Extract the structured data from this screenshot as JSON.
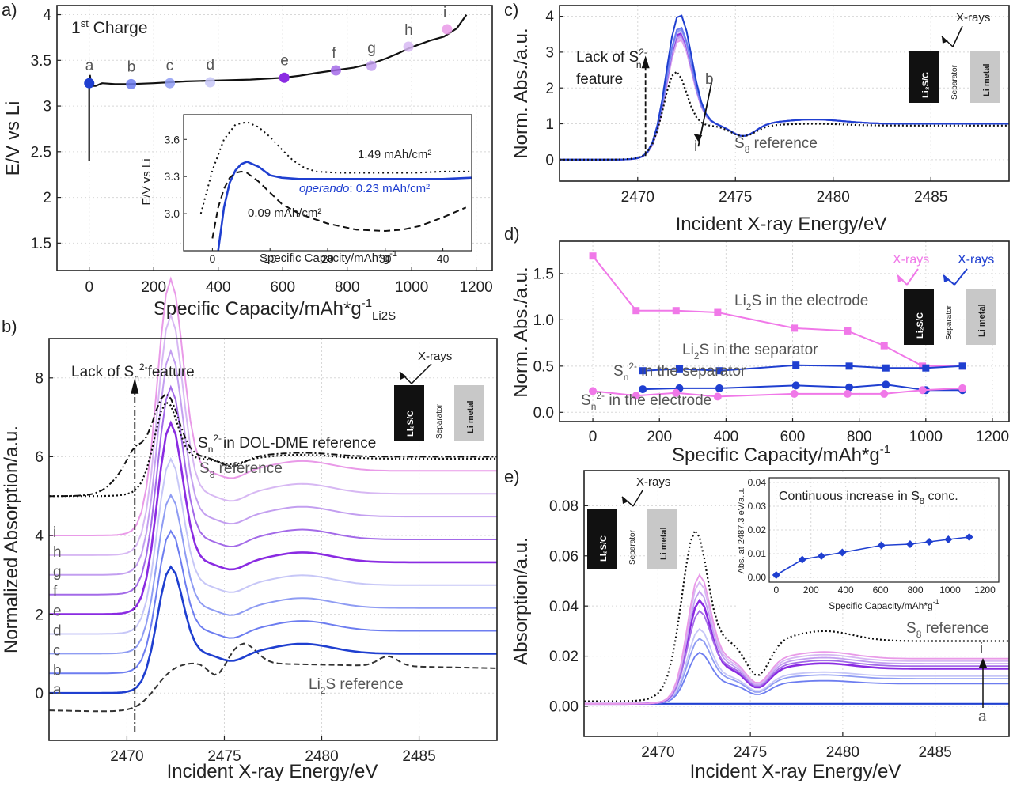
{
  "colors": {
    "blue": "#1f3fd0",
    "violet": "#8a2be2",
    "pink": "#f078e8",
    "black": "#111111",
    "gray": "#555555",
    "cell_black": "#111111",
    "cell_gray": "#c8c8c8",
    "spectra": [
      "#1f3fd0",
      "#6d7df0",
      "#8f9cf3",
      "#c7c7f7",
      "#8a2be2",
      "#a36ae8",
      "#c39ff0",
      "#d7b8f3",
      "#e99ae8"
    ]
  },
  "panels": {
    "a": "a)",
    "b": "b)",
    "c": "c)",
    "d": "d)",
    "e": "e)"
  },
  "chart_data": [
    {
      "id": "a",
      "type": "line",
      "title": "1st Charge",
      "title_sup": "st",
      "title_num": "1",
      "title_rest": " Charge",
      "xlabel": "Specific Capacity/mAh*g",
      "xlabel_sup": "-1",
      "xlabel_sub": "Li2S",
      "ylabel": "E/V vs Li",
      "xlim": [
        -100,
        1250
      ],
      "ylim": [
        1.2,
        4.1
      ],
      "xticks": [
        0,
        200,
        400,
        600,
        800,
        1000,
        1200
      ],
      "yticks": [
        1.5,
        2.0,
        2.5,
        3.0,
        3.5,
        4.0
      ],
      "curve": {
        "x": [
          0,
          0,
          2,
          5,
          10,
          20,
          40,
          80,
          130,
          200,
          300,
          400,
          500,
          600,
          650,
          700,
          760,
          820,
          880,
          920,
          960,
          990,
          1020,
          1060,
          1100,
          1140,
          1170
        ],
        "y": [
          2.4,
          3.18,
          3.34,
          3.26,
          3.22,
          3.22,
          3.25,
          3.24,
          3.24,
          3.25,
          3.27,
          3.28,
          3.29,
          3.31,
          3.33,
          3.36,
          3.39,
          3.42,
          3.47,
          3.52,
          3.58,
          3.63,
          3.67,
          3.72,
          3.76,
          3.85,
          4.0
        ]
      },
      "points": [
        {
          "label": "a",
          "x": 0,
          "y": 3.25
        },
        {
          "label": "b",
          "x": 130,
          "y": 3.24
        },
        {
          "label": "c",
          "x": 250,
          "y": 3.25
        },
        {
          "label": "d",
          "x": 375,
          "y": 3.26
        },
        {
          "label": "e",
          "x": 605,
          "y": 3.31
        },
        {
          "label": "f",
          "x": 765,
          "y": 3.39
        },
        {
          "label": "g",
          "x": 875,
          "y": 3.44
        },
        {
          "label": "h",
          "x": 990,
          "y": 3.65
        },
        {
          "label": "i",
          "x": 1110,
          "y": 3.84
        }
      ]
    },
    {
      "id": "a_inset",
      "type": "line",
      "xlabel": "Specific Capacity/mAh*g",
      "xlabel_sup": "-1",
      "ylabel": "E/V vs Li",
      "xlim": [
        -5,
        45
      ],
      "ylim": [
        2.7,
        3.8
      ],
      "xticks": [
        0,
        10,
        20,
        30,
        40
      ],
      "yticks": [
        3.0,
        3.3,
        3.6
      ],
      "series": [
        {
          "name": "1.49 mAh/cm²",
          "label": "1.49 mAh/cm²",
          "style": "dotted",
          "x": [
            -2,
            0,
            2,
            4,
            6,
            8,
            10,
            12,
            14,
            16,
            18,
            22,
            26,
            30,
            35,
            40,
            45
          ],
          "y": [
            3.0,
            3.35,
            3.6,
            3.72,
            3.74,
            3.7,
            3.62,
            3.52,
            3.43,
            3.37,
            3.34,
            3.33,
            3.33,
            3.33,
            3.33,
            3.34,
            3.34
          ]
        },
        {
          "name": "operando: 0.23 mAh/cm²",
          "label_italic": "operando",
          "label_rest": ": 0.23 mAh/cm²",
          "style": "solid",
          "x": [
            1,
            2,
            3,
            4,
            5,
            6,
            8,
            10,
            12,
            15,
            20,
            30,
            40,
            45
          ],
          "y": [
            2.7,
            3.05,
            3.25,
            3.35,
            3.4,
            3.42,
            3.38,
            3.31,
            3.29,
            3.28,
            3.28,
            3.28,
            3.28,
            3.29
          ]
        },
        {
          "name": "0.09 mAh/cm²",
          "label": "0.09 mAh/cm²",
          "style": "dashed",
          "x": [
            0,
            1,
            2,
            3,
            4,
            5,
            6,
            8,
            10,
            12,
            15,
            20,
            25,
            30,
            33,
            36,
            40,
            44
          ],
          "y": [
            2.8,
            3.05,
            3.2,
            3.29,
            3.33,
            3.34,
            3.33,
            3.26,
            3.17,
            3.08,
            3.0,
            2.92,
            2.87,
            2.86,
            2.87,
            2.9,
            2.97,
            3.05
          ]
        }
      ]
    },
    {
      "id": "b",
      "type": "line",
      "xlabel": "Incident X-ray Energy/eV",
      "ylabel": "Normalized Absorption/a.u.",
      "xlim": [
        2466,
        2489
      ],
      "ylim": [
        -1.2,
        9
      ],
      "xticks": [
        2470,
        2475,
        2480,
        2485
      ],
      "yticks": [
        0,
        2,
        4,
        6,
        8
      ],
      "series_labels": [
        "a",
        "b",
        "c",
        "d",
        "e",
        "f",
        "g",
        "h",
        "i"
      ],
      "offsets": [
        0,
        0.5,
        1.0,
        1.5,
        2.0,
        2.5,
        3.0,
        3.5,
        4.0
      ],
      "annotations": {
        "lack": "Lack of S",
        "lack_sub": "n",
        "lack_sup": "2-",
        "lack_rest": "feature",
        "dol": "in DOL-DME reference",
        "dol_s": "S",
        "dol_sub": "n",
        "dol_sup": "2-",
        "s8": "S",
        "s8_sub": "8",
        "s8_rest": " reference",
        "li2s": "Li",
        "li2s_sub": "2",
        "li2s_rest": "S reference"
      },
      "dashed_line_x": 2470.4
    },
    {
      "id": "c",
      "type": "line",
      "xlabel": "Incident X-ray Energy/eV",
      "ylabel": "Norm. Abs./a.u.",
      "xlim": [
        2466,
        2489
      ],
      "ylim": [
        -0.6,
        4.3
      ],
      "xticks": [
        2470,
        2475,
        2480,
        2485
      ],
      "yticks": [
        0,
        1,
        2,
        3,
        4
      ],
      "annotations": {
        "lack1": "Lack of S",
        "lack_sub": "n",
        "lack_sup": "2-",
        "lack2": "feature",
        "b": "b",
        "i": "i",
        "s8": "S",
        "s8_sub": "8",
        "s8_rest": " reference"
      }
    },
    {
      "id": "d",
      "type": "line",
      "xlabel": "Specific Capacity/mAh*g",
      "xlabel_sup": "-1",
      "ylabel": "Norm. Abs./a.u.",
      "xlim": [
        -100,
        1250
      ],
      "ylim": [
        -0.1,
        1.85
      ],
      "xticks": [
        0,
        200,
        400,
        600,
        800,
        1000,
        1200
      ],
      "yticks": [
        0.0,
        0.5,
        1.0,
        1.5
      ],
      "series": [
        {
          "name": "Li2S in the electrode",
          "color": "pink",
          "marker": "square",
          "x": [
            0,
            130,
            250,
            375,
            605,
            765,
            875,
            990,
            1110
          ],
          "y": [
            1.69,
            1.1,
            1.1,
            1.08,
            0.91,
            0.88,
            0.72,
            0.5,
            0.5
          ]
        },
        {
          "name": "Li2S in the separator",
          "color": "blue",
          "marker": "square",
          "x": [
            150,
            260,
            380,
            610,
            770,
            880,
            1000,
            1110
          ],
          "y": [
            0.45,
            0.47,
            0.45,
            0.51,
            0.5,
            0.48,
            0.48,
            0.5
          ]
        },
        {
          "name": "Sn2- in the separator",
          "color": "blue",
          "marker": "circle",
          "x": [
            150,
            260,
            380,
            610,
            770,
            880,
            1000,
            1110
          ],
          "y": [
            0.25,
            0.26,
            0.26,
            0.29,
            0.27,
            0.3,
            0.24,
            0.24
          ]
        },
        {
          "name": "Sn2- in the electrode",
          "color": "pink",
          "marker": "circle",
          "x": [
            0,
            130,
            250,
            375,
            605,
            765,
            875,
            990,
            1110
          ],
          "y": [
            0.23,
            0.18,
            0.21,
            0.17,
            0.2,
            0.2,
            0.2,
            0.24,
            0.26
          ]
        }
      ],
      "labels": {
        "li2s_el": "Li",
        "li2s_el_sub": "2",
        "li2s_el_rest": "S in the electrode",
        "li2s_sep": "Li",
        "li2s_sep_sub": "2",
        "li2s_sep_rest": "S in the separator",
        "sn_sep": "S",
        "sn_sep_sub": "n",
        "sn_sep_sup": "2-",
        "sn_sep_rest": " in the separator",
        "sn_el": "S",
        "sn_el_sub": "n",
        "sn_el_sup": "2-",
        "sn_el_rest": " in the electrode"
      }
    },
    {
      "id": "e",
      "type": "line",
      "xlabel": "Incident X-ray Energy/eV",
      "ylabel": "Absorption/a.u.",
      "xlim": [
        2466,
        2489
      ],
      "ylim": [
        -0.012,
        0.094
      ],
      "xticks": [
        2470,
        2475,
        2480,
        2485
      ],
      "yticks": [
        "0.00",
        "0.02",
        "0.04",
        "0.06",
        "0.08"
      ],
      "annotations": {
        "s8": "S",
        "s8_sub": "8",
        "s8_rest": " reference",
        "i": "i",
        "a": "a"
      }
    },
    {
      "id": "e_inset",
      "type": "line",
      "title": "Continuous increase in S",
      "title_sub": "8",
      "title_rest": " conc.",
      "xlabel": "Specific Capacity/mAh*g",
      "xlabel_sup": "-1",
      "ylabel": "Abs. at 2487.3 eV/a.u.",
      "xlim": [
        -40,
        1280
      ],
      "ylim": [
        -0.002,
        0.042
      ],
      "xticks": [
        0,
        200,
        400,
        600,
        800,
        1000,
        1200
      ],
      "yticks": [
        "0.00",
        "0.01",
        "0.02",
        "0.03",
        "0.04"
      ],
      "x": [
        0,
        150,
        260,
        380,
        605,
        770,
        880,
        990,
        1110
      ],
      "y": [
        0.001,
        0.0075,
        0.009,
        0.0105,
        0.0135,
        0.014,
        0.015,
        0.016,
        0.017
      ]
    }
  ],
  "cell": {
    "cathode": "Li2S/C",
    "cathode_label": "Li₂S/C",
    "separator": "Separator",
    "anode": "Li metal",
    "xrays": "X-rays"
  }
}
